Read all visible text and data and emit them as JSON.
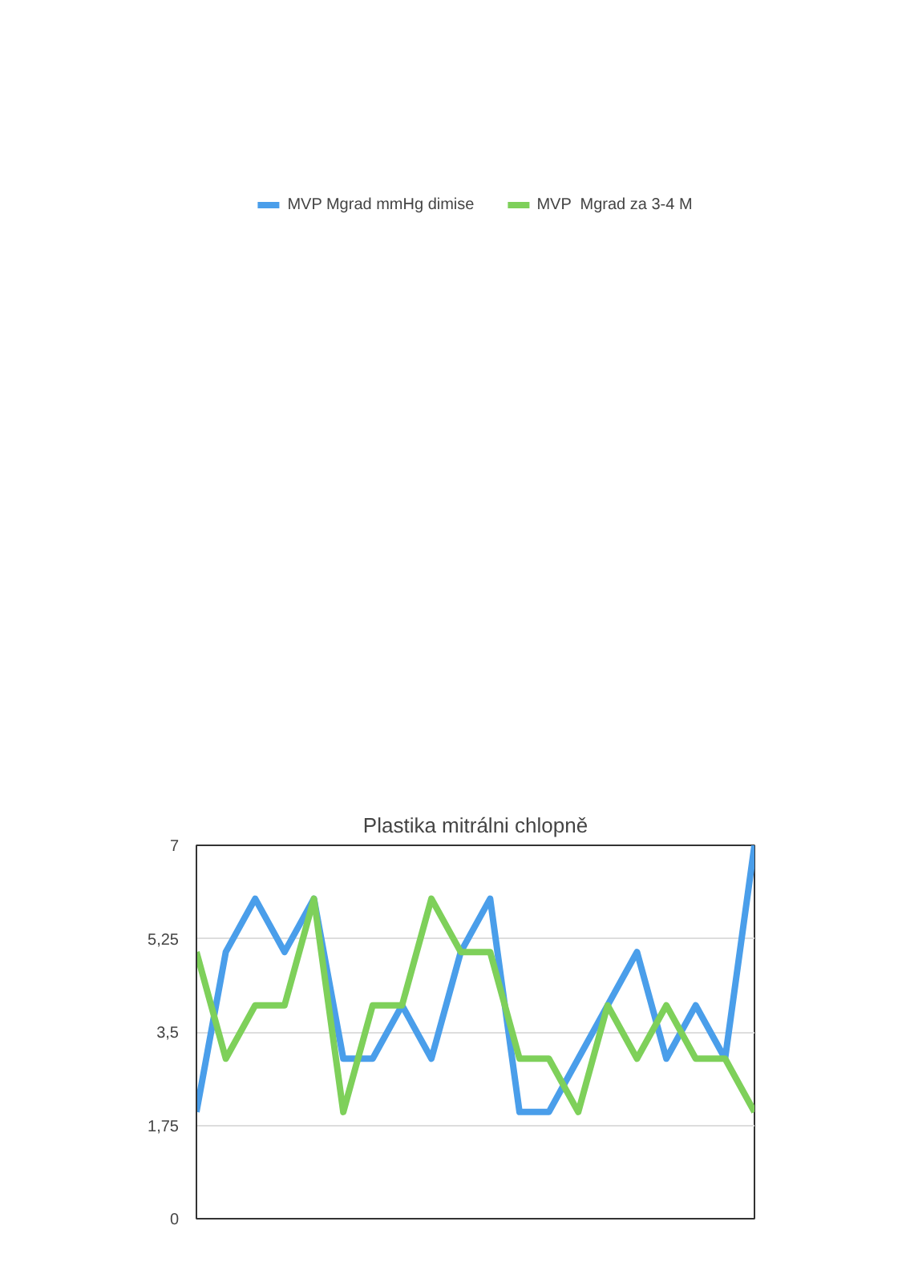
{
  "chart_data": {
    "type": "line",
    "title": "Plastika mitrálni chlopně",
    "categories": [
      null,
      null,
      null,
      null,
      null,
      null,
      null,
      null,
      null,
      null,
      null,
      null,
      null,
      null,
      null,
      null,
      null,
      null,
      null,
      null
    ],
    "series": [
      {
        "name": "MVP Mgrad mmHg dimise",
        "color": "#4a9eea",
        "values": [
          2,
          5,
          6,
          5,
          6,
          3,
          3,
          4,
          3,
          5,
          6,
          2,
          2,
          3,
          4,
          5,
          3,
          4,
          3,
          7
        ]
      },
      {
        "name": "MVP  Mgrad za 3-4 M",
        "color": "#7ed05a",
        "values": [
          5,
          3,
          4,
          4,
          6,
          2,
          4,
          4,
          6,
          5,
          5,
          3,
          3,
          2,
          4,
          3,
          4,
          3,
          3,
          2
        ]
      }
    ],
    "ylim": [
      0,
      7
    ],
    "yticks": [
      0,
      {
        "value": 1.75,
        "label": "1,75"
      },
      {
        "value": 3.5,
        "label": "3,5"
      },
      {
        "value": 5.25,
        "label": "5,25"
      },
      7
    ],
    "grid": "y",
    "legend": "top",
    "line_style": "solid",
    "tick_labels": "y"
  }
}
